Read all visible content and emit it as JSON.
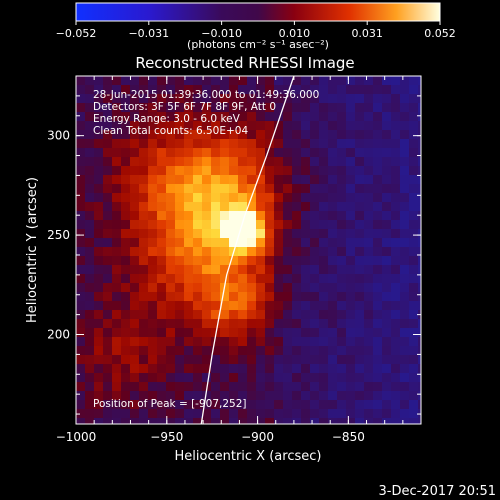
{
  "chart_data": {
    "type": "heatmap",
    "title": "Reconstructed RHESSI Image",
    "colorbar": {
      "tick_labels": [
        "−0.052",
        "−0.031",
        "−0.010",
        "0.010",
        "0.031",
        "0.052"
      ],
      "range": [
        -0.052,
        0.052
      ],
      "unit_label": "(photons cm⁻² s⁻¹ asec⁻²)"
    },
    "xlabel": "Heliocentric X (arcsec)",
    "ylabel": "Heliocentric Y (arcsec)",
    "xlim": [
      -1000,
      -810
    ],
    "ylim": [
      155,
      330
    ],
    "x_ticks": [
      -1000,
      -950,
      -900,
      -850
    ],
    "x_tick_labels": [
      "−1000",
      "−950",
      "−900",
      "−850"
    ],
    "y_ticks": [
      200,
      250,
      300
    ],
    "y_tick_labels": [
      "200",
      "250",
      "300"
    ],
    "info_lines": [
      "28-Jun-2015 01:39:36.000 to 01:49:36.000",
      "Detectors: 3F 5F 6F 7F 8F 9F, Att 0",
      "Energy Range: 3.0 - 6.0 keV",
      "Clean     Total counts: 6.50E+04"
    ],
    "peak_label": "Position of Peak = [-907,252]",
    "peak": {
      "x": -907,
      "y": 252
    },
    "limb_curve": [
      [
        -931,
        155
      ],
      [
        -925,
        190
      ],
      [
        -917,
        230
      ],
      [
        -907,
        260
      ],
      [
        -895,
        290
      ],
      [
        -880,
        330
      ]
    ],
    "sources": [
      {
        "x": -907,
        "y": 252,
        "sigma": 7,
        "amp": 1.0
      },
      {
        "x": -918,
        "y": 272,
        "sigma": 22,
        "amp": 0.55
      },
      {
        "x": -935,
        "y": 240,
        "sigma": 24,
        "amp": 0.45
      },
      {
        "x": -912,
        "y": 215,
        "sigma": 14,
        "amp": 0.35
      },
      {
        "x": -955,
        "y": 282,
        "sigma": 20,
        "amp": 0.25
      },
      {
        "x": -975,
        "y": 190,
        "sigma": 18,
        "amp": 0.2
      }
    ],
    "grid": false
  },
  "footer": {
    "date": "3-Dec-2017 20:51"
  }
}
